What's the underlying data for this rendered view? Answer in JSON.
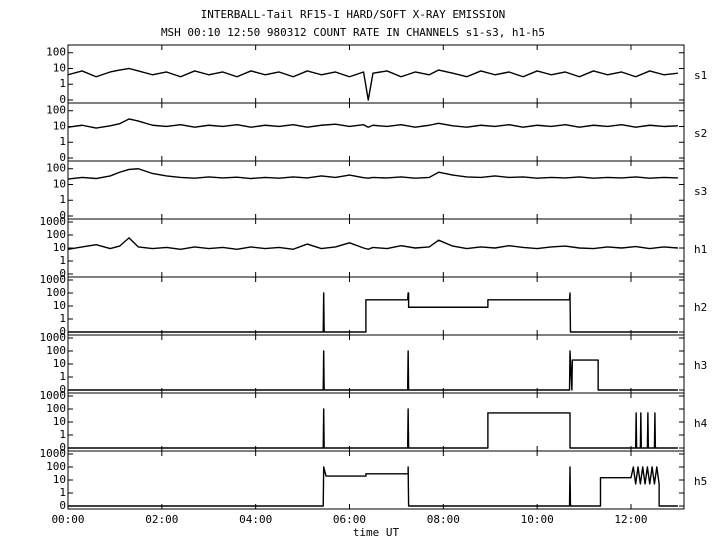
{
  "chart_data": {
    "type": "line",
    "title": "INTERBALL-Tail RF15-I HARD/SOFT X-RAY EMISSION",
    "subtitle": "MSH 00:10 12:50 980312  COUNT RATE IN CHANNELS s1-s3, h1-h5",
    "x_label": "time UT",
    "xlim": [
      0,
      13.13
    ],
    "xticks": [
      {
        "value": 0,
        "label": "00:00"
      },
      {
        "value": 2,
        "label": "02:00"
      },
      {
        "value": 4,
        "label": "04:00"
      },
      {
        "value": 6,
        "label": "06:00"
      },
      {
        "value": 8,
        "label": "08:00"
      },
      {
        "value": 10,
        "label": "10:00"
      },
      {
        "value": 12,
        "label": "12:00"
      }
    ],
    "yscale": "log",
    "series": [
      {
        "name": "s1",
        "color": "#000000",
        "ylim": [
          0,
          200
        ],
        "yticks": [
          0,
          1,
          10,
          100
        ],
        "x": [
          0,
          0.3,
          0.6,
          0.9,
          1.1,
          1.3,
          1.5,
          1.8,
          2.1,
          2.4,
          2.7,
          3,
          3.3,
          3.6,
          3.9,
          4.2,
          4.5,
          4.8,
          5.1,
          5.4,
          5.7,
          6,
          6.3,
          6.4,
          6.5,
          6.8,
          7.1,
          7.4,
          7.7,
          7.9,
          8.2,
          8.5,
          8.8,
          9.1,
          9.4,
          9.7,
          10,
          10.3,
          10.6,
          10.9,
          11.2,
          11.5,
          11.8,
          12.1,
          12.4,
          12.7,
          13
        ],
        "values": [
          4,
          7,
          3,
          6,
          8,
          10,
          7,
          4,
          6,
          3,
          7,
          4,
          6,
          3,
          7,
          4,
          6,
          3,
          7,
          4,
          6,
          3,
          6,
          0,
          5,
          7,
          3,
          6,
          4,
          8,
          5,
          3,
          7,
          4,
          6,
          3,
          7,
          4,
          6,
          3,
          7,
          4,
          6,
          3,
          7,
          4,
          5
        ]
      },
      {
        "name": "s2",
        "color": "#000000",
        "ylim": [
          0,
          200
        ],
        "yticks": [
          0,
          1,
          10,
          100
        ],
        "x": [
          0,
          0.3,
          0.6,
          0.9,
          1.1,
          1.3,
          1.5,
          1.8,
          2.1,
          2.4,
          2.7,
          3,
          3.3,
          3.6,
          3.9,
          4.2,
          4.5,
          4.8,
          5.1,
          5.4,
          5.7,
          6,
          6.3,
          6.4,
          6.5,
          6.8,
          7.1,
          7.4,
          7.7,
          7.9,
          8.2,
          8.5,
          8.8,
          9.1,
          9.4,
          9.7,
          10,
          10.3,
          10.6,
          10.9,
          11.2,
          11.5,
          11.8,
          12.1,
          12.4,
          12.7,
          13
        ],
        "values": [
          9,
          12,
          8,
          11,
          15,
          30,
          22,
          12,
          10,
          13,
          9,
          12,
          10,
          13,
          9,
          12,
          10,
          13,
          9,
          12,
          14,
          10,
          13,
          9,
          12,
          10,
          13,
          9,
          12,
          16,
          11,
          9,
          12,
          10,
          13,
          9,
          12,
          10,
          13,
          9,
          12,
          10,
          13,
          9,
          12,
          10,
          11
        ]
      },
      {
        "name": "s3",
        "color": "#000000",
        "ylim": [
          0,
          200
        ],
        "yticks": [
          0,
          1,
          10,
          100
        ],
        "x": [
          0,
          0.3,
          0.6,
          0.9,
          1.1,
          1.3,
          1.5,
          1.8,
          2.1,
          2.4,
          2.7,
          3,
          3.3,
          3.6,
          3.9,
          4.2,
          4.5,
          4.8,
          5.1,
          5.4,
          5.7,
          6,
          6.3,
          6.4,
          6.5,
          6.8,
          7.1,
          7.4,
          7.7,
          7.9,
          8.2,
          8.5,
          8.8,
          9.1,
          9.4,
          9.7,
          10,
          10.3,
          10.6,
          10.9,
          11.2,
          11.5,
          11.8,
          12.1,
          12.4,
          12.7,
          13
        ],
        "values": [
          22,
          28,
          24,
          35,
          60,
          90,
          100,
          50,
          35,
          28,
          25,
          30,
          26,
          29,
          24,
          28,
          25,
          30,
          26,
          35,
          28,
          40,
          27,
          25,
          28,
          26,
          30,
          25,
          28,
          60,
          40,
          30,
          28,
          35,
          28,
          30,
          25,
          28,
          26,
          30,
          25,
          28,
          26,
          30,
          25,
          28,
          26
        ]
      },
      {
        "name": "h1",
        "color": "#000000",
        "ylim": [
          0,
          1000
        ],
        "yticks": [
          0,
          1,
          10,
          100,
          1000
        ],
        "x": [
          0,
          0.3,
          0.6,
          0.9,
          1.1,
          1.3,
          1.5,
          1.8,
          2.1,
          2.4,
          2.7,
          3,
          3.3,
          3.6,
          3.9,
          4.2,
          4.5,
          4.8,
          5.1,
          5.4,
          5.7,
          6,
          6.3,
          6.4,
          6.5,
          6.8,
          7.1,
          7.4,
          7.7,
          7.9,
          8.2,
          8.5,
          8.8,
          9.1,
          9.4,
          9.7,
          10,
          10.3,
          10.6,
          10.9,
          11.2,
          11.5,
          11.8,
          12.1,
          12.4,
          12.7,
          13
        ],
        "values": [
          8,
          12,
          18,
          9,
          14,
          60,
          12,
          9,
          11,
          8,
          12,
          9,
          11,
          8,
          12,
          9,
          11,
          8,
          20,
          9,
          12,
          25,
          10,
          8,
          11,
          9,
          15,
          10,
          12,
          40,
          14,
          9,
          12,
          10,
          15,
          11,
          9,
          12,
          14,
          10,
          9,
          12,
          10,
          13,
          9,
          12,
          10
        ]
      },
      {
        "name": "h2",
        "color": "#000000",
        "ylim": [
          0,
          1000
        ],
        "yticks": [
          0,
          1,
          10,
          100,
          1000
        ],
        "x": [
          0,
          5.44,
          5.45,
          5.46,
          6.35,
          6.35,
          7.24,
          7.25,
          7.26,
          7.26,
          8.95,
          8.95,
          10.69,
          10.7,
          10.71,
          13
        ],
        "values": [
          0,
          0,
          100,
          0,
          0,
          30,
          30,
          100,
          100,
          8,
          8,
          30,
          30,
          100,
          0,
          0
        ]
      },
      {
        "name": "h3",
        "color": "#000000",
        "ylim": [
          0,
          1000
        ],
        "yticks": [
          0,
          1,
          10,
          100,
          1000
        ],
        "x": [
          0,
          5.44,
          5.45,
          5.46,
          7.24,
          7.25,
          7.26,
          10.69,
          10.7,
          10.74,
          10.75,
          11.3,
          11.3,
          13
        ],
        "values": [
          0,
          0,
          100,
          0,
          0,
          100,
          0,
          0,
          100,
          0,
          20,
          20,
          0,
          0
        ]
      },
      {
        "name": "h4",
        "color": "#000000",
        "ylim": [
          0,
          1000
        ],
        "yticks": [
          0,
          1,
          10,
          100,
          1000
        ],
        "x": [
          0,
          5.44,
          5.45,
          5.46,
          7.24,
          7.25,
          7.26,
          8.95,
          8.95,
          10.7,
          10.7,
          12.1,
          12.11,
          12.12,
          12.2,
          12.21,
          12.22,
          12.35,
          12.36,
          12.37,
          12.5,
          12.51,
          12.52,
          13
        ],
        "values": [
          0,
          0,
          100,
          0,
          0,
          100,
          0,
          0,
          50,
          50,
          0,
          0,
          50,
          0,
          0,
          50,
          0,
          0,
          50,
          0,
          0,
          50,
          0,
          0
        ]
      },
      {
        "name": "h5",
        "color": "#000000",
        "ylim": [
          0,
          1000
        ],
        "yticks": [
          0,
          1,
          10,
          100,
          1000
        ],
        "x": [
          0,
          5.44,
          5.45,
          5.5,
          6.35,
          6.35,
          7.25,
          7.25,
          7.26,
          10.69,
          10.7,
          10.71,
          11.35,
          11.35,
          12.0,
          12.05,
          12.1,
          12.15,
          12.2,
          12.25,
          12.3,
          12.35,
          12.4,
          12.45,
          12.5,
          12.55,
          12.6,
          12.6,
          13
        ],
        "values": [
          0,
          0,
          100,
          20,
          20,
          30,
          30,
          100,
          0,
          0,
          100,
          0,
          0,
          15,
          15,
          100,
          5,
          100,
          5,
          100,
          5,
          100,
          5,
          100,
          5,
          100,
          5,
          0,
          0
        ]
      }
    ]
  }
}
